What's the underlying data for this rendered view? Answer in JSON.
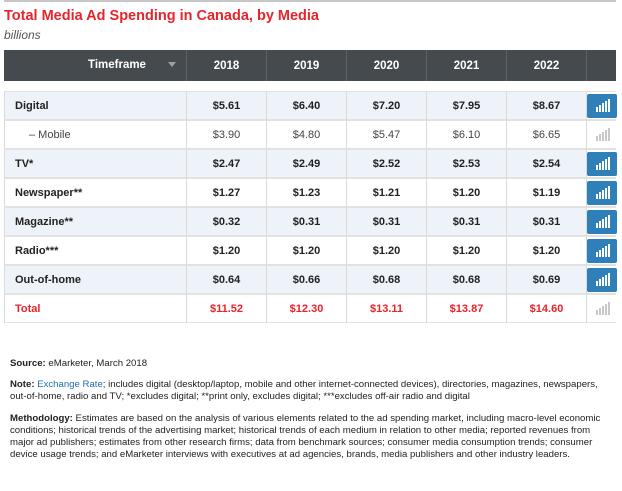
{
  "title": "Total Media Ad Spending in Canada, by Media",
  "subtitle": "billions",
  "header": {
    "timeframe": "Timeframe"
  },
  "colors": {
    "accent": "#e8232b",
    "header_bg": "#444a4e",
    "highlight_row": "#eef3fa",
    "chart_button": "#2f7fb8"
  },
  "chart_data": {
    "type": "table",
    "columns": [
      "2018",
      "2019",
      "2020",
      "2021",
      "2022"
    ],
    "rows": [
      {
        "label": "Digital",
        "values": [
          "$5.61",
          "$6.40",
          "$7.20",
          "$7.95",
          "$8.67"
        ],
        "icon": "bar-chart-icon"
      },
      {
        "label": "– Mobile",
        "values": [
          "$3.90",
          "$4.80",
          "$5.47",
          "$6.10",
          "$6.65"
        ],
        "icon": "bar-chart-icon"
      },
      {
        "label": "TV*",
        "values": [
          "$2.47",
          "$2.49",
          "$2.52",
          "$2.53",
          "$2.54"
        ],
        "icon": "bar-chart-icon"
      },
      {
        "label": "Newspaper**",
        "values": [
          "$1.27",
          "$1.23",
          "$1.21",
          "$1.20",
          "$1.19"
        ],
        "icon": "bar-chart-icon"
      },
      {
        "label": "Magazine**",
        "values": [
          "$0.32",
          "$0.31",
          "$0.31",
          "$0.31",
          "$0.31"
        ],
        "icon": "bar-chart-icon"
      },
      {
        "label": "Radio***",
        "values": [
          "$1.20",
          "$1.20",
          "$1.20",
          "$1.20",
          "$1.20"
        ],
        "icon": "bar-chart-icon"
      },
      {
        "label": "Out-of-home",
        "values": [
          "$0.64",
          "$0.66",
          "$0.68",
          "$0.68",
          "$0.69"
        ],
        "icon": "bar-chart-icon"
      },
      {
        "label": "Total",
        "values": [
          "$11.52",
          "$12.30",
          "$13.11",
          "$13.87",
          "$14.60"
        ],
        "icon": "bar-chart-icon"
      }
    ]
  },
  "notes": {
    "source_label": "Source:",
    "source_text": " eMarketer, March 2018",
    "note_label": "Note:",
    "note_link": "Exchange Rate",
    "note_text": "; includes digital (desktop/laptop, mobile and other internet-connected devices), directories, magazines, newspapers, out-of-home, radio and TV; *excludes digital; **print only, excludes digital; ***excludes off-air radio and digital",
    "methodology_label": "Methodology:",
    "methodology_text": " Estimates are based on the analysis of various elements related to the ad spending market, including macro-level economic conditions; historical trends of the advertising market; historical trends of each medium in relation to other media; reported revenues from major ad publishers; estimates from other research firms; data from benchmark sources; consumer media consumption trends; consumer device usage trends; and eMarketer interviews with executives at ad agencies, brands, media publishers and other industry leaders."
  }
}
